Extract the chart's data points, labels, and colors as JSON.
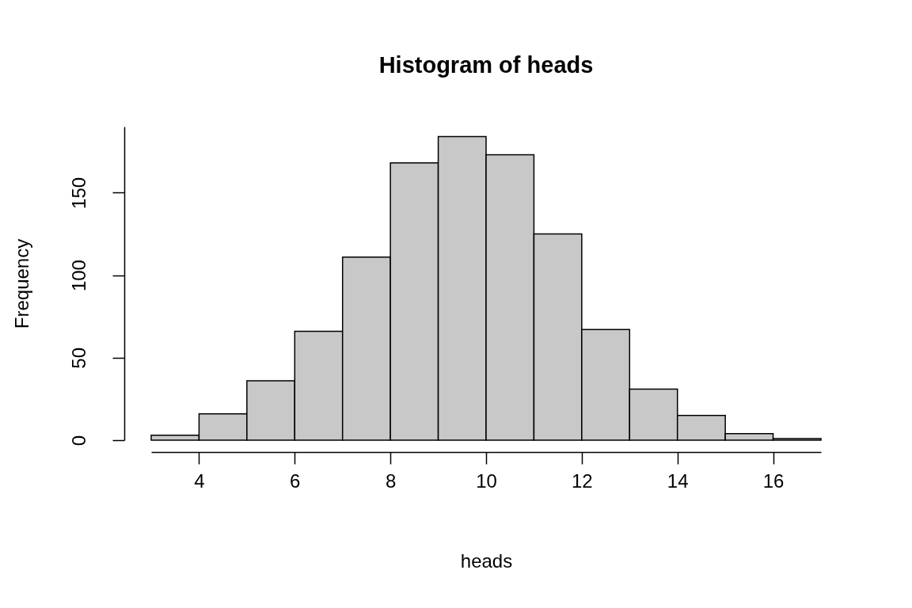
{
  "chart_data": {
    "type": "histogram",
    "title": "Histogram of heads",
    "xlabel": "heads",
    "ylabel": "Frequency",
    "bins": [
      3,
      4,
      5,
      6,
      7,
      8,
      9,
      10,
      11,
      12,
      13,
      14,
      15,
      16,
      17
    ],
    "values": [
      3,
      16,
      36,
      66,
      111,
      168,
      184,
      173,
      125,
      67,
      31,
      15,
      4,
      1
    ],
    "color": "#c8c8c8",
    "xlim": [
      3,
      17
    ],
    "xticks": [
      4,
      6,
      8,
      10,
      12,
      14,
      16
    ],
    "ylim": [
      0,
      190
    ],
    "yticks": [
      0,
      50,
      100,
      150
    ]
  }
}
